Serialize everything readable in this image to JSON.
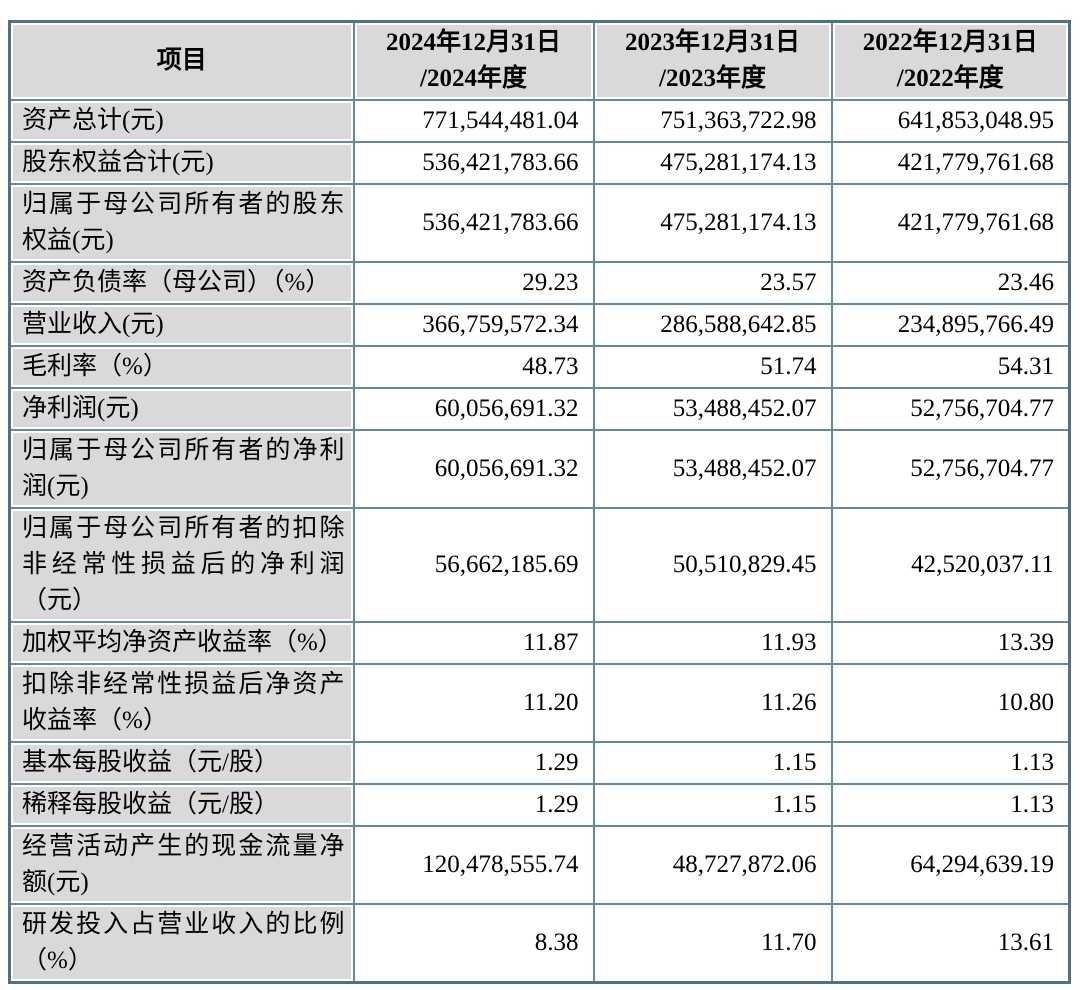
{
  "colors": {
    "inner_border": "#6688a2",
    "outer_border": "#517084",
    "header_bg": "#d9d9d9",
    "label_bg": "#d9d9d9",
    "value_bg": "#ffffff",
    "text": "#000000"
  },
  "table": {
    "header": {
      "item": "项目",
      "columns": [
        {
          "line1": "2024年12月31日",
          "line2": "/2024年度"
        },
        {
          "line1": "2023年12月31日",
          "line2": "/2023年度"
        },
        {
          "line1": "2022年12月31日",
          "line2": "/2022年度"
        }
      ]
    },
    "rows": [
      {
        "label": "资产总计(元)",
        "values": [
          "771,544,481.04",
          "751,363,722.98",
          "641,853,048.95"
        ]
      },
      {
        "label": "股东权益合计(元)",
        "values": [
          "536,421,783.66",
          "475,281,174.13",
          "421,779,761.68"
        ]
      },
      {
        "label": "归属于母公司所有者的股东权益(元)",
        "values": [
          "536,421,783.66",
          "475,281,174.13",
          "421,779,761.68"
        ]
      },
      {
        "label": "资产负债率（母公司）（%）",
        "values": [
          "29.23",
          "23.57",
          "23.46"
        ]
      },
      {
        "label": "营业收入(元)",
        "values": [
          "366,759,572.34",
          "286,588,642.85",
          "234,895,766.49"
        ]
      },
      {
        "label": "毛利率（%）",
        "values": [
          "48.73",
          "51.74",
          "54.31"
        ]
      },
      {
        "label": "净利润(元)",
        "values": [
          "60,056,691.32",
          "53,488,452.07",
          "52,756,704.77"
        ]
      },
      {
        "label": "归属于母公司所有者的净利润(元)",
        "values": [
          "60,056,691.32",
          "53,488,452.07",
          "52,756,704.77"
        ]
      },
      {
        "label": "归属于母公司所有者的扣除非经常性损益后的净利润（元）",
        "values": [
          "56,662,185.69",
          "50,510,829.45",
          "42,520,037.11"
        ]
      },
      {
        "label": "加权平均净资产收益率（%）",
        "values": [
          "11.87",
          "11.93",
          "13.39"
        ]
      },
      {
        "label": "扣除非经常性损益后净资产收益率（%）",
        "values": [
          "11.20",
          "11.26",
          "10.80"
        ]
      },
      {
        "label": "基本每股收益（元/股）",
        "values": [
          "1.29",
          "1.15",
          "1.13"
        ]
      },
      {
        "label": "稀释每股收益（元/股）",
        "values": [
          "1.29",
          "1.15",
          "1.13"
        ]
      },
      {
        "label": "经营活动产生的现金流量净额(元)",
        "values": [
          "120,478,555.74",
          "48,727,872.06",
          "64,294,639.19"
        ]
      },
      {
        "label": "研发投入占营业收入的比例（%）",
        "values": [
          "8.38",
          "11.70",
          "13.61"
        ]
      }
    ]
  }
}
